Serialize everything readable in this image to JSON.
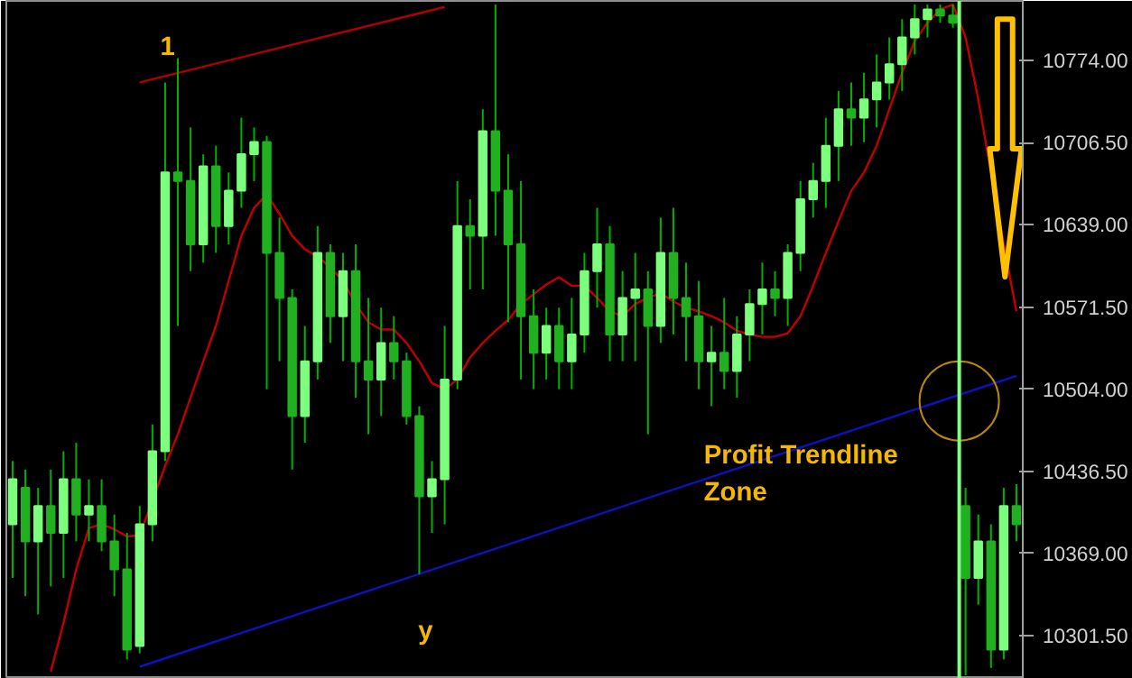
{
  "chart_data": {
    "type": "candlestick",
    "categories": [
      null,
      null,
      null,
      null,
      null,
      null,
      null,
      null,
      null,
      null,
      null,
      null,
      null,
      null,
      null,
      null,
      null,
      null,
      null,
      null,
      null,
      null,
      null,
      null,
      null,
      null,
      null,
      null,
      null,
      null,
      null,
      null,
      null,
      null,
      null,
      null,
      null,
      null,
      null,
      null,
      null,
      null,
      null,
      null,
      null,
      null,
      null,
      null,
      null,
      null,
      null,
      null,
      null,
      null,
      null,
      null,
      null,
      null,
      null,
      null,
      null,
      null,
      null,
      null,
      null,
      null,
      null,
      null,
      null,
      null,
      null,
      null,
      null,
      null,
      null,
      null,
      null,
      null,
      null,
      null
    ],
    "ohlc": [
      [
        10393,
        10445,
        10349,
        10430
      ],
      [
        10423,
        10438,
        10334,
        10379
      ],
      [
        10379,
        10423,
        10319,
        10408
      ],
      [
        10408,
        10438,
        10342,
        10386
      ],
      [
        10386,
        10453,
        10349,
        10430
      ],
      [
        10430,
        10460,
        10379,
        10401
      ],
      [
        10401,
        10430,
        10379,
        10408
      ],
      [
        10408,
        10430,
        10371,
        10379
      ],
      [
        10379,
        10401,
        10334,
        10356
      ],
      [
        10356,
        10386,
        10282,
        10290
      ],
      [
        10293,
        10408,
        10287,
        10393
      ],
      [
        10393,
        10475,
        10379,
        10453
      ],
      [
        10453,
        10756,
        10445,
        10682
      ],
      [
        10682,
        10776,
        10556,
        10675
      ],
      [
        10675,
        10719,
        10601,
        10623
      ],
      [
        10623,
        10697,
        10608,
        10687
      ],
      [
        10687,
        10704,
        10616,
        10638
      ],
      [
        10638,
        10682,
        10623,
        10667
      ],
      [
        10667,
        10727,
        10653,
        10697
      ],
      [
        10697,
        10719,
        10675,
        10707
      ],
      [
        10707,
        10712,
        10504,
        10616
      ],
      [
        10616,
        10645,
        10527,
        10579
      ],
      [
        10579,
        10586,
        10438,
        10482
      ],
      [
        10482,
        10556,
        10460,
        10527
      ],
      [
        10527,
        10638,
        10512,
        10616
      ],
      [
        10616,
        10623,
        10542,
        10564
      ],
      [
        10564,
        10616,
        10527,
        10601
      ],
      [
        10601,
        10623,
        10497,
        10527
      ],
      [
        10527,
        10579,
        10467,
        10512
      ],
      [
        10512,
        10571,
        10482,
        10542
      ],
      [
        10542,
        10564,
        10512,
        10527
      ],
      [
        10527,
        10534,
        10475,
        10482
      ],
      [
        10482,
        10490,
        10352,
        10416
      ],
      [
        10416,
        10445,
        10386,
        10430
      ],
      [
        10430,
        10556,
        10393,
        10512
      ],
      [
        10512,
        10675,
        10504,
        10638
      ],
      [
        10638,
        10660,
        10586,
        10630
      ],
      [
        10630,
        10734,
        10586,
        10716
      ],
      [
        10716,
        10820,
        10630,
        10667
      ],
      [
        10667,
        10697,
        10559,
        10623
      ],
      [
        10623,
        10675,
        10512,
        10564
      ],
      [
        10564,
        10586,
        10504,
        10534
      ],
      [
        10534,
        10571,
        10512,
        10556
      ],
      [
        10556,
        10571,
        10504,
        10527
      ],
      [
        10527,
        10579,
        10504,
        10549
      ],
      [
        10549,
        10616,
        10534,
        10601
      ],
      [
        10601,
        10653,
        10571,
        10623
      ],
      [
        10623,
        10638,
        10527,
        10549
      ],
      [
        10549,
        10601,
        10527,
        10579
      ],
      [
        10579,
        10616,
        10527,
        10586
      ],
      [
        10586,
        10601,
        10467,
        10556
      ],
      [
        10556,
        10645,
        10542,
        10616
      ],
      [
        10616,
        10653,
        10549,
        10579
      ],
      [
        10579,
        10608,
        10527,
        10564
      ],
      [
        10564,
        10593,
        10504,
        10527
      ],
      [
        10527,
        10556,
        10490,
        10534
      ],
      [
        10534,
        10579,
        10504,
        10519
      ],
      [
        10519,
        10564,
        10497,
        10549
      ],
      [
        10549,
        10586,
        10527,
        10574
      ],
      [
        10574,
        10608,
        10549,
        10586
      ],
      [
        10586,
        10601,
        10564,
        10579
      ],
      [
        10579,
        10623,
        10556,
        10616
      ],
      [
        10616,
        10675,
        10601,
        10660
      ],
      [
        10660,
        10690,
        10645,
        10675
      ],
      [
        10675,
        10727,
        10653,
        10704
      ],
      [
        10704,
        10749,
        10675,
        10734
      ],
      [
        10734,
        10756,
        10704,
        10727
      ],
      [
        10727,
        10764,
        10707,
        10742
      ],
      [
        10742,
        10779,
        10719,
        10756
      ],
      [
        10756,
        10793,
        10742,
        10771
      ],
      [
        10771,
        10808,
        10749,
        10793
      ],
      [
        10793,
        10820,
        10779,
        10808
      ],
      [
        10808,
        10820,
        10793,
        10816
      ],
      [
        10816,
        10820,
        10805,
        10811
      ],
      [
        10811,
        10820,
        10801,
        10805
      ],
      [
        10408,
        10423,
        10269,
        10349
      ],
      [
        10349,
        10401,
        10327,
        10379
      ],
      [
        10379,
        10393,
        10275,
        10290
      ],
      [
        10290,
        10423,
        10282,
        10408
      ],
      [
        10408,
        10426,
        10379,
        10393
      ]
    ],
    "series": [
      {
        "type": "line",
        "color": "#c00000",
        "values": [
          null,
          null,
          null,
          10272,
          10312,
          10356,
          10390,
          10393,
          10389,
          10383,
          10384,
          null,
          10441,
          10467,
          10497,
          10527,
          10556,
          10593,
          10630,
          10653,
          10664,
          10648,
          10630,
          10619,
          10613,
          10604,
          10593,
          10574,
          10559,
          10553,
          10553,
          10542,
          10527,
          10509,
          10504,
          10512,
          10530,
          10542,
          10552,
          10561,
          10574,
          10582,
          10590,
          10596,
          10589,
          10589,
          10579,
          10568,
          10564,
          10574,
          10579,
          10583,
          10576,
          10571,
          10568,
          10564,
          10559,
          10552,
          10549,
          10547,
          10547,
          10550,
          10564,
          10589,
          10616,
          10642,
          10667,
          10682,
          10704,
          10734,
          10764,
          10790,
          10805,
          10816,
          10820,
          10793,
          10742,
          10682,
          10623,
          10568
        ]
      },
      {
        "type": "line",
        "color": "#b00000",
        "values": [
          null,
          null,
          null,
          null,
          null,
          null,
          null,
          null,
          null,
          null,
          10756,
          null,
          null,
          null,
          null,
          null,
          null,
          null,
          null,
          null,
          null,
          null,
          null,
          null,
          null,
          null,
          null,
          null,
          null,
          null,
          null,
          null,
          null,
          null,
          10818,
          null,
          null,
          null,
          null,
          null,
          null,
          null,
          null,
          null,
          null,
          null,
          null,
          null,
          null,
          null,
          null,
          null,
          null,
          null,
          null,
          null,
          null,
          null,
          null,
          null,
          null,
          null,
          null,
          null,
          null,
          null,
          null,
          null,
          null,
          null,
          null,
          null,
          null,
          null,
          null,
          null,
          null,
          null,
          null,
          null
        ]
      },
      {
        "type": "line",
        "color": "#1010c0",
        "values": [
          null,
          null,
          null,
          null,
          null,
          null,
          null,
          null,
          null,
          null,
          10276,
          null,
          null,
          null,
          null,
          null,
          null,
          null,
          null,
          null,
          null,
          null,
          null,
          null,
          null,
          null,
          null,
          null,
          null,
          null,
          null,
          null,
          null,
          null,
          null,
          null,
          null,
          null,
          null,
          null,
          null,
          null,
          null,
          null,
          null,
          null,
          null,
          null,
          null,
          null,
          null,
          null,
          null,
          null,
          null,
          null,
          null,
          null,
          null,
          null,
          null,
          null,
          null,
          null,
          null,
          null,
          null,
          null,
          null,
          null,
          null,
          null,
          null,
          null,
          null,
          null,
          null,
          null,
          null,
          10515
        ]
      }
    ],
    "ylim": [
      10266,
      10823
    ],
    "yticks": [
      {
        "value": 10774,
        "label": "10774.00"
      },
      {
        "value": 10706.5,
        "label": "10706.50"
      },
      {
        "value": 10639,
        "label": "10639.00"
      },
      {
        "value": 10571.5,
        "label": "10571.50"
      },
      {
        "value": 10504,
        "label": "10504.00"
      },
      {
        "value": 10436.5,
        "label": "10436.50"
      },
      {
        "value": 10369,
        "label": "10369.00"
      },
      {
        "value": 10301.5,
        "label": "10301.50"
      }
    ],
    "tick_labels": "y",
    "grid": false,
    "annotations": [
      "1",
      "y",
      "Profit Trendline Zone"
    ]
  }
}
